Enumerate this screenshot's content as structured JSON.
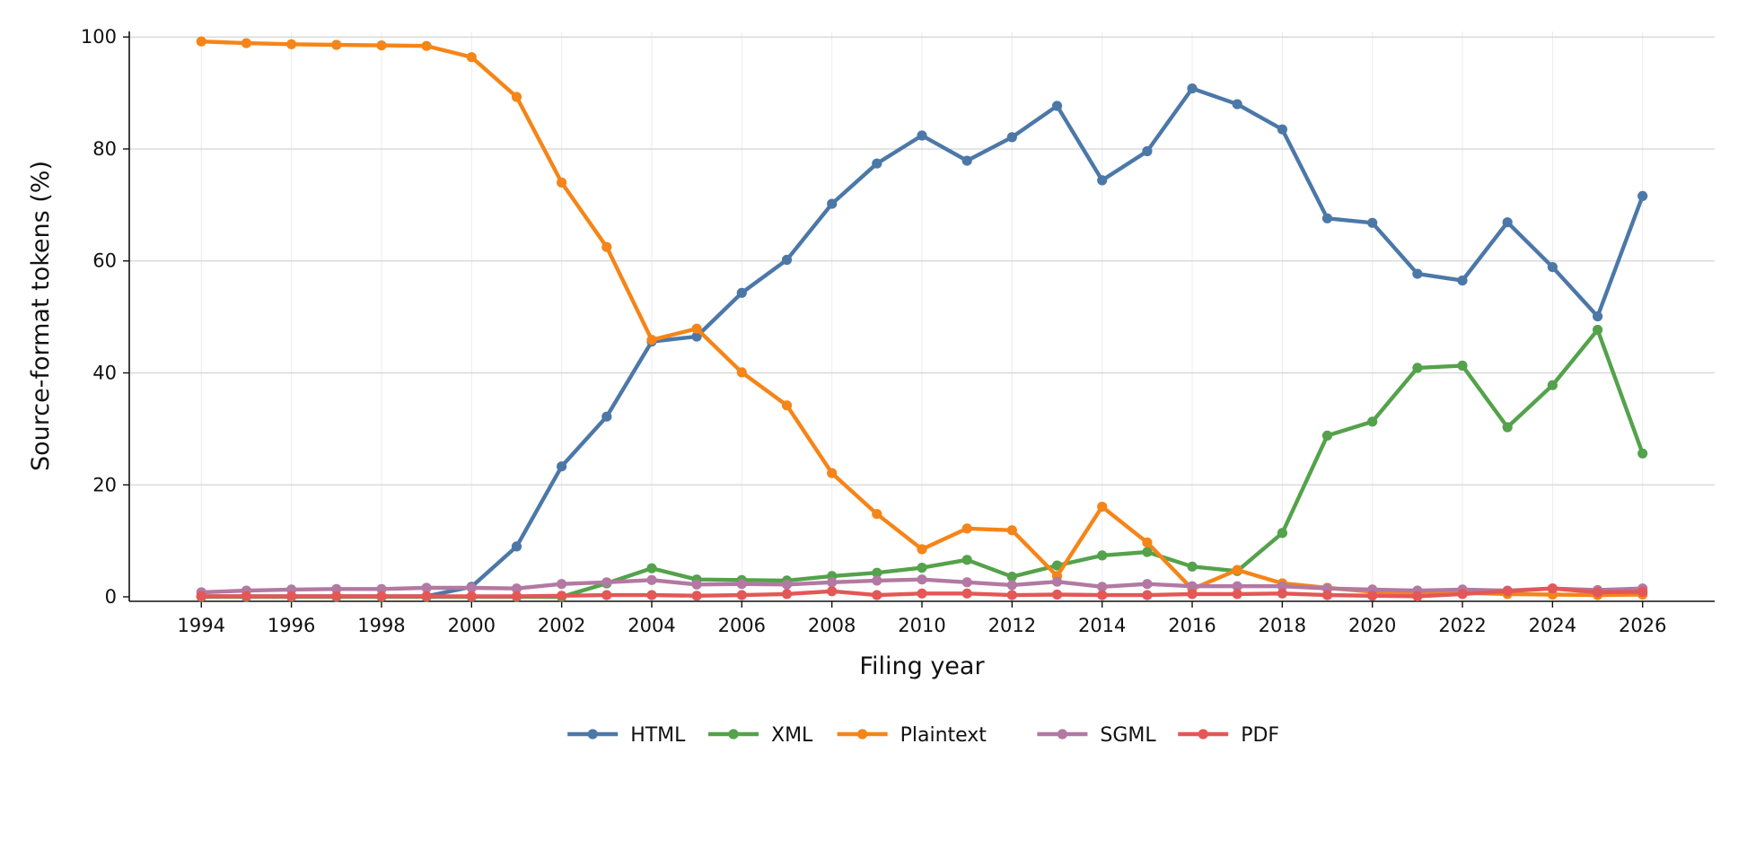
{
  "chart_data": {
    "type": "line",
    "xlabel": "Filing year",
    "ylabel": "Source-format tokens (%)",
    "x": [
      1994,
      1995,
      1996,
      1997,
      1998,
      1999,
      2000,
      2001,
      2002,
      2003,
      2004,
      2005,
      2006,
      2007,
      2008,
      2009,
      2010,
      2011,
      2012,
      2013,
      2014,
      2015,
      2016,
      2017,
      2018,
      2019,
      2020,
      2021,
      2022,
      2023,
      2024,
      2025,
      2026
    ],
    "xlim": [
      1992.4,
      2027.6
    ],
    "ylim": [
      -0.8,
      101
    ],
    "x_ticks": [
      "1994",
      "1996",
      "1998",
      "2000",
      "2002",
      "2004",
      "2006",
      "2008",
      "2010",
      "2012",
      "2014",
      "2016",
      "2018",
      "2020",
      "2022",
      "2024",
      "2026"
    ],
    "y_ticks": [
      "0",
      "20",
      "40",
      "60",
      "80",
      "100"
    ],
    "grid": true,
    "legend_position": "bottom-center",
    "series": [
      {
        "name": "HTML",
        "color": "#4C78A8",
        "values": [
          0.1,
          0.1,
          0.1,
          0.1,
          0.1,
          0.1,
          1.8,
          9.0,
          23.3,
          32.2,
          45.6,
          46.5,
          54.3,
          60.2,
          70.2,
          77.4,
          82.4,
          77.9,
          82.1,
          87.7,
          74.4,
          79.6,
          90.8,
          88.0,
          83.5,
          67.6,
          66.8,
          57.7,
          56.5,
          66.9,
          58.9,
          50.1,
          71.6
        ]
      },
      {
        "name": "XML",
        "color": "#54A24B",
        "values": [
          0.0,
          0.0,
          0.0,
          0.0,
          0.0,
          0.0,
          0.0,
          0.0,
          0.0,
          2.4,
          5.1,
          3.1,
          3.0,
          2.9,
          3.7,
          4.3,
          5.2,
          6.6,
          3.6,
          5.6,
          7.4,
          8.0,
          5.4,
          4.6,
          11.4,
          28.8,
          31.3,
          40.9,
          41.3,
          30.3,
          37.8,
          47.7,
          25.6
        ]
      },
      {
        "name": "Plaintext",
        "color": "#F58518",
        "values": [
          99.2,
          98.9,
          98.7,
          98.6,
          98.5,
          98.4,
          96.4,
          89.3,
          74.0,
          62.5,
          45.9,
          47.9,
          40.1,
          34.2,
          22.1,
          14.8,
          8.5,
          12.2,
          11.9,
          3.7,
          16.1,
          9.7,
          1.4,
          4.8,
          2.4,
          1.6,
          0.9,
          0.5,
          0.7,
          0.5,
          0.4,
          0.3,
          0.4
        ]
      },
      {
        "name": "SGML",
        "color": "#B279A2",
        "values": [
          0.8,
          1.1,
          1.3,
          1.4,
          1.4,
          1.6,
          1.6,
          1.5,
          2.3,
          2.6,
          3.0,
          2.2,
          2.3,
          2.2,
          2.6,
          2.9,
          3.1,
          2.6,
          2.1,
          2.7,
          1.8,
          2.3,
          1.9,
          1.9,
          1.9,
          1.5,
          1.3,
          1.1,
          1.3,
          1.1,
          1.5,
          1.2,
          1.5
        ]
      },
      {
        "name": "PDF",
        "color": "#E45756",
        "values": [
          0.1,
          0.1,
          0.1,
          0.1,
          0.1,
          0.1,
          0.1,
          0.1,
          0.2,
          0.3,
          0.3,
          0.2,
          0.3,
          0.5,
          1.0,
          0.3,
          0.6,
          0.6,
          0.3,
          0.4,
          0.3,
          0.3,
          0.5,
          0.5,
          0.6,
          0.3,
          0.2,
          0.1,
          0.5,
          1.0,
          1.5,
          0.8,
          0.9
        ]
      }
    ]
  }
}
